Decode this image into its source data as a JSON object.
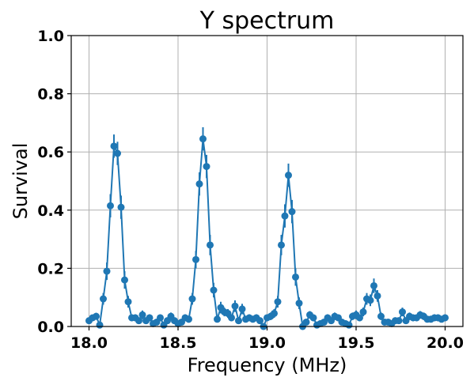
{
  "chart_data": {
    "type": "line",
    "title": "Y spectrum",
    "xlabel": "Frequency (MHz)",
    "ylabel": "Survival",
    "xlim": [
      17.9,
      20.1
    ],
    "ylim": [
      0.0,
      1.0
    ],
    "xticks": [
      "18.0",
      "18.5",
      "19.0",
      "19.5",
      "20.0"
    ],
    "yticks": [
      "0.0",
      "0.2",
      "0.4",
      "0.6",
      "0.8",
      "1.0"
    ],
    "grid": true,
    "color": "#1f77b4",
    "series": [
      {
        "name": "",
        "x": [
          18.0,
          18.02,
          18.04,
          18.06,
          18.08,
          18.1,
          18.12,
          18.14,
          18.16,
          18.18,
          18.2,
          18.22,
          18.24,
          18.26,
          18.28,
          18.3,
          18.32,
          18.34,
          18.36,
          18.38,
          18.4,
          18.42,
          18.44,
          18.46,
          18.48,
          18.5,
          18.52,
          18.54,
          18.56,
          18.58,
          18.6,
          18.62,
          18.64,
          18.66,
          18.68,
          18.7,
          18.72,
          18.74,
          18.76,
          18.78,
          18.8,
          18.82,
          18.84,
          18.86,
          18.88,
          18.9,
          18.92,
          18.94,
          18.96,
          18.98,
          19.0,
          19.02,
          19.04,
          19.06,
          19.08,
          19.1,
          19.12,
          19.14,
          19.16,
          19.18,
          19.2,
          19.22,
          19.24,
          19.26,
          19.28,
          19.3,
          19.32,
          19.34,
          19.36,
          19.38,
          19.4,
          19.42,
          19.44,
          19.46,
          19.48,
          19.5,
          19.52,
          19.54,
          19.56,
          19.58,
          19.6,
          19.62,
          19.64,
          19.66,
          19.68,
          19.7,
          19.72,
          19.74,
          19.76,
          19.78,
          19.8,
          19.82,
          19.84,
          19.86,
          19.88,
          19.9,
          19.92,
          19.94,
          19.96,
          19.98,
          20.0
        ],
        "y": [
          0.02,
          0.03,
          0.035,
          0.005,
          0.095,
          0.19,
          0.415,
          0.62,
          0.595,
          0.41,
          0.16,
          0.085,
          0.03,
          0.03,
          0.02,
          0.04,
          0.02,
          0.03,
          0.01,
          0.015,
          0.03,
          0.005,
          0.02,
          0.035,
          0.02,
          0.01,
          0.015,
          0.03,
          0.025,
          0.095,
          0.23,
          0.49,
          0.645,
          0.55,
          0.28,
          0.125,
          0.025,
          0.065,
          0.05,
          0.045,
          0.03,
          0.07,
          0.02,
          0.06,
          0.025,
          0.03,
          0.025,
          0.03,
          0.02,
          0.0,
          0.03,
          0.035,
          0.045,
          0.085,
          0.28,
          0.38,
          0.52,
          0.395,
          0.17,
          0.08,
          0.0,
          0.015,
          0.04,
          0.03,
          0.005,
          0.01,
          0.015,
          0.03,
          0.02,
          0.035,
          0.03,
          0.015,
          0.01,
          0.005,
          0.035,
          0.04,
          0.03,
          0.05,
          0.095,
          0.09,
          0.14,
          0.105,
          0.035,
          0.015,
          0.015,
          0.01,
          0.02,
          0.02,
          0.05,
          0.02,
          0.035,
          0.03,
          0.03,
          0.04,
          0.035,
          0.025,
          0.025,
          0.03,
          0.03,
          0.025,
          0.03
        ],
        "err": [
          0.01,
          0.01,
          0.012,
          0.008,
          0.02,
          0.03,
          0.04,
          0.04,
          0.04,
          0.04,
          0.03,
          0.02,
          0.012,
          0.012,
          0.01,
          0.015,
          0.01,
          0.012,
          0.008,
          0.01,
          0.012,
          0.008,
          0.01,
          0.013,
          0.01,
          0.008,
          0.01,
          0.012,
          0.012,
          0.02,
          0.03,
          0.04,
          0.04,
          0.04,
          0.035,
          0.025,
          0.01,
          0.02,
          0.015,
          0.015,
          0.012,
          0.02,
          0.01,
          0.018,
          0.01,
          0.012,
          0.01,
          0.012,
          0.01,
          0.006,
          0.012,
          0.013,
          0.015,
          0.02,
          0.035,
          0.04,
          0.04,
          0.04,
          0.03,
          0.02,
          0.006,
          0.008,
          0.013,
          0.012,
          0.008,
          0.008,
          0.01,
          0.012,
          0.01,
          0.013,
          0.012,
          0.01,
          0.008,
          0.008,
          0.013,
          0.015,
          0.012,
          0.015,
          0.02,
          0.02,
          0.025,
          0.02,
          0.013,
          0.01,
          0.01,
          0.008,
          0.01,
          0.01,
          0.015,
          0.01,
          0.013,
          0.012,
          0.012,
          0.013,
          0.013,
          0.01,
          0.01,
          0.012,
          0.012,
          0.01,
          0.012
        ]
      }
    ]
  }
}
